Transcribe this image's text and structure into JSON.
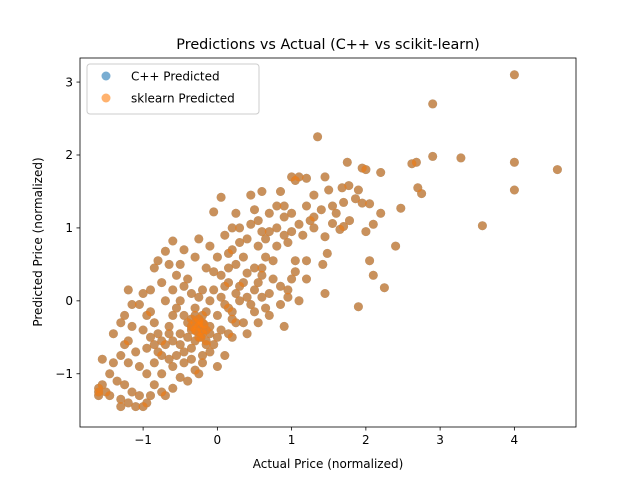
{
  "chart_data": {
    "type": "scatter",
    "title": "Predictions vs Actual (C++ vs scikit-learn)",
    "xlabel": "Actual Price (normalized)",
    "ylabel": "Predicted Price (normalized)",
    "xlim": [
      -1.85,
      4.83
    ],
    "ylim": [
      -1.73,
      3.33
    ],
    "xticks": [
      -1,
      0,
      1,
      2,
      3,
      4
    ],
    "yticks": [
      -1,
      0,
      1,
      2,
      3
    ],
    "xtick_labels": [
      "−1",
      "0",
      "1",
      "2",
      "3",
      "4"
    ],
    "ytick_labels": [
      "−1",
      "0",
      "1",
      "2",
      "3"
    ],
    "grid": false,
    "legend_position": "top-left",
    "series": [
      {
        "name": "C++ Predicted",
        "color": "#1f77b4",
        "alpha": 0.6,
        "points": [
          [
            4.0,
            3.1
          ],
          [
            2.9,
            2.7
          ],
          [
            1.35,
            2.25
          ],
          [
            2.9,
            1.98
          ],
          [
            3.28,
            1.96
          ],
          [
            4.0,
            1.9
          ],
          [
            4.58,
            1.8
          ],
          [
            2.68,
            1.9
          ],
          [
            2.62,
            1.88
          ],
          [
            2.7,
            1.55
          ],
          [
            2.75,
            1.47
          ],
          [
            4.0,
            1.52
          ],
          [
            3.57,
            1.03
          ],
          [
            2.47,
            1.27
          ],
          [
            1.95,
            1.82
          ],
          [
            2.0,
            1.8
          ],
          [
            2.2,
            1.76
          ],
          [
            1.75,
            1.9
          ],
          [
            1.77,
            1.58
          ],
          [
            1.68,
            1.55
          ],
          [
            1.9,
            1.52
          ],
          [
            1.86,
            1.4
          ],
          [
            1.95,
            1.34
          ],
          [
            2.05,
            1.33
          ],
          [
            2.2,
            1.2
          ],
          [
            1.78,
            1.1
          ],
          [
            1.7,
            1.02
          ],
          [
            1.65,
            0.98
          ],
          [
            1.55,
            1.06
          ],
          [
            1.45,
            0.88
          ],
          [
            1.48,
            0.65
          ],
          [
            1.2,
            0.55
          ],
          [
            1.42,
            0.5
          ],
          [
            2.0,
            0.95
          ],
          [
            2.1,
            1.05
          ],
          [
            2.4,
            0.75
          ],
          [
            2.05,
            0.55
          ],
          [
            2.1,
            0.35
          ],
          [
            2.25,
            0.18
          ],
          [
            1.9,
            -0.08
          ],
          [
            1.2,
            0.3
          ],
          [
            1.45,
            0.1
          ],
          [
            1.0,
            0.3
          ],
          [
            0.95,
            0.05
          ],
          [
            0.9,
            -0.35
          ],
          [
            0.7,
            -0.2
          ],
          [
            0.55,
            -0.3
          ],
          [
            0.6,
            0.05
          ],
          [
            0.4,
            0.38
          ],
          [
            1.2,
            1.68
          ],
          [
            1.0,
            1.7
          ],
          [
            1.1,
            1.7
          ],
          [
            1.45,
            1.7
          ],
          [
            1.5,
            1.52
          ],
          [
            1.3,
            1.45
          ],
          [
            1.2,
            1.3
          ],
          [
            1.3,
            1.15
          ],
          [
            1.1,
            1.05
          ],
          [
            0.9,
            1.15
          ],
          [
            1.0,
            0.95
          ],
          [
            0.95,
            0.8
          ],
          [
            0.8,
            0.75
          ],
          [
            1.05,
            0.55
          ],
          [
            0.75,
            0.55
          ],
          [
            0.6,
            0.35
          ],
          [
            0.8,
            1.3
          ],
          [
            0.7,
            1.2
          ],
          [
            0.55,
            1.1
          ],
          [
            0.6,
            0.95
          ],
          [
            0.45,
            1.05
          ],
          [
            0.25,
            1.2
          ],
          [
            0.2,
            1.0
          ],
          [
            0.4,
            0.85
          ],
          [
            0.3,
            0.8
          ],
          [
            0.2,
            0.7
          ],
          [
            0.1,
            0.9
          ],
          [
            0.0,
            0.6
          ],
          [
            -0.1,
            0.75
          ],
          [
            -0.15,
            0.45
          ],
          [
            0.05,
            0.35
          ],
          [
            0.25,
            0.5
          ],
          [
            0.35,
            0.25
          ],
          [
            0.5,
            0.15
          ],
          [
            0.3,
            0.0
          ],
          [
            0.15,
            -0.1
          ],
          [
            0.1,
            0.2
          ],
          [
            -0.05,
            0.15
          ],
          [
            -0.1,
            0.0
          ],
          [
            0.45,
            1.45
          ],
          [
            0.05,
            1.42
          ],
          [
            -0.05,
            1.22
          ],
          [
            0.6,
            1.5
          ],
          [
            0.85,
            1.5
          ],
          [
            1.05,
            1.65
          ],
          [
            -0.25,
            0.85
          ],
          [
            -0.3,
            0.6
          ],
          [
            -0.45,
            0.7
          ],
          [
            -0.5,
            0.5
          ],
          [
            -0.55,
            0.35
          ],
          [
            -0.4,
            0.3
          ],
          [
            -0.35,
            0.1
          ],
          [
            -0.25,
            0.05
          ],
          [
            -0.6,
            0.15
          ],
          [
            -0.7,
            0.0
          ],
          [
            -0.75,
            0.25
          ],
          [
            -0.85,
            0.45
          ],
          [
            -0.7,
            0.68
          ],
          [
            -0.65,
            0.5
          ],
          [
            -0.6,
            0.82
          ],
          [
            -0.8,
            0.55
          ],
          [
            -0.55,
            -0.1
          ],
          [
            -0.45,
            -0.2
          ],
          [
            -0.35,
            -0.25
          ],
          [
            -0.2,
            -0.3
          ],
          [
            -0.1,
            -0.35
          ],
          [
            0.05,
            -0.4
          ],
          [
            0.15,
            -0.45
          ],
          [
            0.2,
            -0.25
          ],
          [
            -0.3,
            -0.4
          ],
          [
            -0.25,
            -0.5
          ],
          [
            -0.15,
            -0.55
          ],
          [
            -0.05,
            -0.6
          ],
          [
            0.1,
            -0.75
          ],
          [
            0.0,
            -0.9
          ],
          [
            -0.2,
            -0.75
          ],
          [
            -0.35,
            -0.65
          ],
          [
            -0.5,
            -0.45
          ],
          [
            -0.65,
            -0.35
          ],
          [
            -0.75,
            -0.55
          ],
          [
            -0.85,
            -0.3
          ],
          [
            -0.95,
            -0.2
          ],
          [
            -1.05,
            -0.05
          ],
          [
            -1.0,
            -0.4
          ],
          [
            -1.15,
            -0.35
          ],
          [
            -1.2,
            -0.55
          ],
          [
            -1.1,
            -0.7
          ],
          [
            -0.95,
            -0.65
          ],
          [
            -0.85,
            -0.85
          ],
          [
            -0.75,
            -1.0
          ],
          [
            -0.6,
            -0.9
          ],
          [
            -0.5,
            -1.05
          ],
          [
            -0.4,
            -1.1
          ],
          [
            -0.3,
            -0.95
          ],
          [
            -0.2,
            -0.85
          ],
          [
            -0.1,
            -0.7
          ],
          [
            -0.6,
            -1.2
          ],
          [
            -0.7,
            -1.3
          ],
          [
            -0.85,
            -1.15
          ],
          [
            -0.95,
            -1.0
          ],
          [
            -1.05,
            -0.9
          ],
          [
            -1.2,
            -0.85
          ],
          [
            -1.3,
            -0.75
          ],
          [
            -1.4,
            -0.85
          ],
          [
            -1.55,
            -0.8
          ],
          [
            -1.45,
            -1.0
          ],
          [
            -1.35,
            -1.1
          ],
          [
            -1.25,
            -1.15
          ],
          [
            -1.15,
            -1.25
          ],
          [
            -1.05,
            -1.3
          ],
          [
            -0.95,
            -1.4
          ],
          [
            -1.1,
            -1.45
          ],
          [
            -1.2,
            -1.4
          ],
          [
            -1.3,
            -1.35
          ],
          [
            -1.45,
            -1.3
          ],
          [
            -1.6,
            -1.2
          ],
          [
            -1.6,
            -1.3
          ],
          [
            -1.5,
            -1.25
          ],
          [
            -1.0,
            -1.45
          ],
          [
            -0.9,
            -1.3
          ],
          [
            -0.75,
            -1.25
          ],
          [
            -1.3,
            -1.45
          ],
          [
            -1.55,
            -1.15
          ],
          [
            -1.6,
            -1.25
          ],
          [
            -1.2,
            0.15
          ],
          [
            -1.15,
            -0.05
          ],
          [
            -1.25,
            -0.2
          ],
          [
            -1.3,
            -0.3
          ],
          [
            -0.9,
            0.15
          ],
          [
            -1.0,
            0.1
          ],
          [
            -1.4,
            -0.45
          ],
          [
            -1.25,
            -0.6
          ],
          [
            -0.45,
            -0.85
          ],
          [
            -0.35,
            -0.8
          ],
          [
            -0.25,
            -1.0
          ],
          [
            -0.15,
            -0.6
          ],
          [
            -0.55,
            -0.75
          ],
          [
            -0.7,
            -0.6
          ],
          [
            -0.8,
            -0.7
          ],
          [
            -0.9,
            -0.5
          ],
          [
            -0.4,
            -0.5
          ],
          [
            -0.3,
            -0.55
          ],
          [
            -0.2,
            -0.45
          ],
          [
            -0.3,
            -0.2
          ],
          [
            -0.4,
            -0.3
          ],
          [
            -0.2,
            -0.2
          ],
          [
            -0.15,
            -0.15
          ],
          [
            0.0,
            -0.2
          ],
          [
            0.1,
            -0.05
          ],
          [
            0.2,
            -0.15
          ],
          [
            0.25,
            0.1
          ],
          [
            0.4,
            0.05
          ],
          [
            0.45,
            -0.05
          ],
          [
            0.3,
            0.2
          ],
          [
            0.5,
            0.45
          ],
          [
            0.65,
            0.6
          ],
          [
            0.35,
            0.6
          ],
          [
            0.15,
            0.45
          ],
          [
            -0.05,
            0.4
          ],
          [
            0.6,
            0.45
          ],
          [
            0.75,
            0.3
          ],
          [
            0.85,
            0.2
          ],
          [
            1.1,
            0.0
          ],
          [
            1.05,
            0.4
          ],
          [
            0.55,
            0.75
          ],
          [
            0.65,
            0.85
          ],
          [
            0.7,
            0.95
          ],
          [
            0.8,
            1.0
          ],
          [
            0.9,
            0.9
          ],
          [
            1.0,
            1.2
          ],
          [
            1.15,
            0.9
          ],
          [
            1.3,
            1.0
          ],
          [
            0.0,
            -0.5
          ],
          [
            -0.1,
            -0.45
          ],
          [
            0.2,
            -0.5
          ],
          [
            0.35,
            -0.3
          ],
          [
            -0.5,
            0.0
          ],
          [
            -0.6,
            -0.2
          ],
          [
            -0.45,
            0.2
          ],
          [
            -0.2,
            0.15
          ],
          [
            -0.8,
            -0.45
          ],
          [
            -0.9,
            -0.15
          ],
          [
            -0.65,
            -0.45
          ],
          [
            -0.5,
            -0.6
          ],
          [
            -0.35,
            -0.4
          ],
          [
            -0.25,
            -0.3
          ],
          [
            -0.3,
            -0.1
          ],
          [
            -0.15,
            -0.4
          ],
          [
            -0.25,
            -0.35
          ],
          [
            -0.2,
            -0.4
          ],
          [
            -0.3,
            -0.3
          ],
          [
            -0.25,
            -0.25
          ],
          [
            -0.18,
            -0.32
          ],
          [
            -0.28,
            -0.42
          ],
          [
            -0.35,
            -0.35
          ],
          [
            -0.22,
            -0.5
          ],
          [
            0.05,
            0.05
          ],
          [
            0.15,
            0.25
          ],
          [
            0.25,
            -0.3
          ],
          [
            -0.45,
            -0.7
          ],
          [
            -0.6,
            -0.55
          ],
          [
            -0.65,
            -0.8
          ],
          [
            -0.75,
            -0.75
          ],
          [
            -0.85,
            -0.6
          ],
          [
            1.6,
            1.2
          ],
          [
            1.7,
            1.35
          ],
          [
            1.55,
            1.3
          ],
          [
            1.4,
            1.25
          ],
          [
            1.25,
            1.1
          ],
          [
            0.9,
            1.3
          ],
          [
            0.5,
            1.25
          ],
          [
            0.3,
            1.0
          ],
          [
            0.65,
            -0.1
          ],
          [
            0.5,
            -0.15
          ],
          [
            0.4,
            -0.45
          ],
          [
            0.55,
            0.25
          ],
          [
            0.7,
            0.1
          ],
          [
            0.85,
            -0.05
          ],
          [
            0.95,
            0.15
          ],
          [
            0.15,
            0.65
          ]
        ]
      },
      {
        "name": "sklearn Predicted",
        "color": "#ff7f0e",
        "alpha": 0.6,
        "points": "same as C++ Predicted (points overlap)"
      }
    ]
  }
}
